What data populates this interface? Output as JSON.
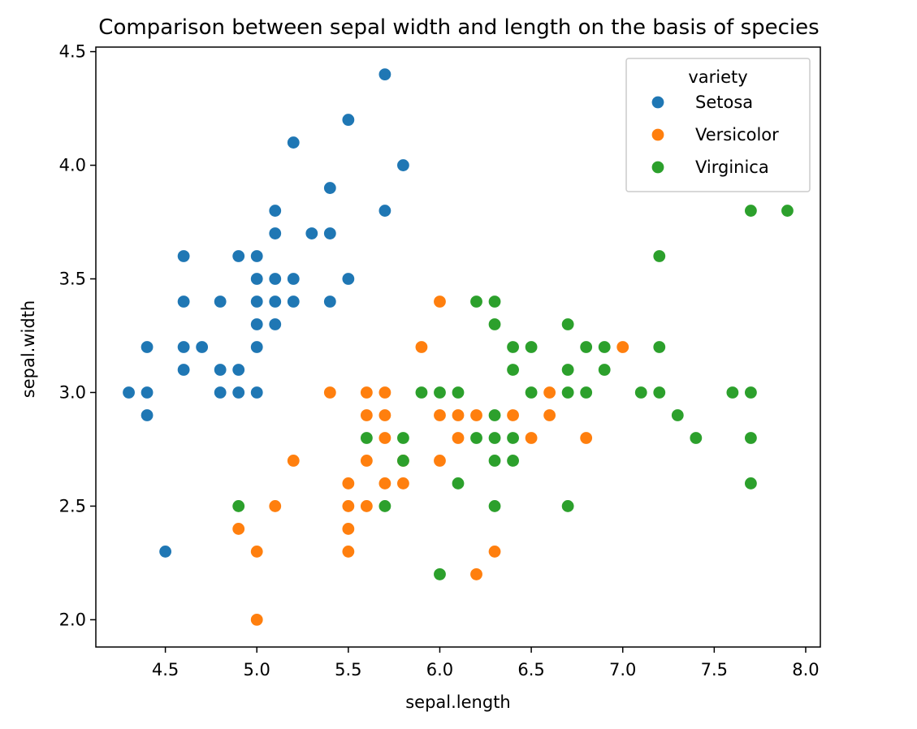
{
  "chart_data": {
    "type": "scatter",
    "title": "Comparison between sepal width and length on the basis of species",
    "xlabel": "sepal.length",
    "ylabel": "sepal.width",
    "xlim": [
      4.12,
      8.08
    ],
    "ylim": [
      1.88,
      4.52
    ],
    "x_ticks": [
      4.5,
      5.0,
      5.5,
      6.0,
      6.5,
      7.0,
      7.5,
      8.0
    ],
    "y_ticks": [
      2.0,
      2.5,
      3.0,
      3.5,
      4.0,
      4.5
    ],
    "grid": false,
    "legend": {
      "title": "variety",
      "position": "top-right"
    },
    "series": [
      {
        "name": "Setosa",
        "color": "#1f77b4",
        "points": [
          [
            5.7,
            4.4
          ],
          [
            5.5,
            4.2
          ],
          [
            5.2,
            4.1
          ],
          [
            5.8,
            4.0
          ],
          [
            5.4,
            3.9
          ],
          [
            5.1,
            3.8
          ],
          [
            5.7,
            3.8
          ],
          [
            5.1,
            3.7
          ],
          [
            5.3,
            3.7
          ],
          [
            5.4,
            3.7
          ],
          [
            4.6,
            3.6
          ],
          [
            4.9,
            3.6
          ],
          [
            5.0,
            3.6
          ],
          [
            5.0,
            3.5
          ],
          [
            5.1,
            3.5
          ],
          [
            5.2,
            3.5
          ],
          [
            5.5,
            3.5
          ],
          [
            4.6,
            3.4
          ],
          [
            4.8,
            3.4
          ],
          [
            5.0,
            3.4
          ],
          [
            5.1,
            3.4
          ],
          [
            5.2,
            3.4
          ],
          [
            5.4,
            3.4
          ],
          [
            5.0,
            3.3
          ],
          [
            5.1,
            3.3
          ],
          [
            4.4,
            3.2
          ],
          [
            4.6,
            3.2
          ],
          [
            4.7,
            3.2
          ],
          [
            5.0,
            3.2
          ],
          [
            4.6,
            3.1
          ],
          [
            4.8,
            3.1
          ],
          [
            4.9,
            3.1
          ],
          [
            4.3,
            3.0
          ],
          [
            4.4,
            3.0
          ],
          [
            4.8,
            3.0
          ],
          [
            4.9,
            3.0
          ],
          [
            5.0,
            3.0
          ],
          [
            4.4,
            2.9
          ],
          [
            4.5,
            2.3
          ]
        ]
      },
      {
        "name": "Versicolor",
        "color": "#ff7f0e",
        "points": [
          [
            6.0,
            3.4
          ],
          [
            5.9,
            3.2
          ],
          [
            7.0,
            3.2
          ],
          [
            5.4,
            3.0
          ],
          [
            5.6,
            3.0
          ],
          [
            5.7,
            3.0
          ],
          [
            6.6,
            3.0
          ],
          [
            5.6,
            2.9
          ],
          [
            5.7,
            2.9
          ],
          [
            6.0,
            2.9
          ],
          [
            6.1,
            2.9
          ],
          [
            6.2,
            2.9
          ],
          [
            6.4,
            2.9
          ],
          [
            6.6,
            2.9
          ],
          [
            5.7,
            2.8
          ],
          [
            6.1,
            2.8
          ],
          [
            6.5,
            2.8
          ],
          [
            6.8,
            2.8
          ],
          [
            5.2,
            2.7
          ],
          [
            5.6,
            2.7
          ],
          [
            5.8,
            2.7
          ],
          [
            6.0,
            2.7
          ],
          [
            5.5,
            2.6
          ],
          [
            5.7,
            2.6
          ],
          [
            5.8,
            2.6
          ],
          [
            5.1,
            2.5
          ],
          [
            5.5,
            2.5
          ],
          [
            5.6,
            2.5
          ],
          [
            4.9,
            2.4
          ],
          [
            5.5,
            2.4
          ],
          [
            5.0,
            2.3
          ],
          [
            5.5,
            2.3
          ],
          [
            6.3,
            2.3
          ],
          [
            6.2,
            2.2
          ],
          [
            5.0,
            2.0
          ]
        ]
      },
      {
        "name": "Virginica",
        "color": "#2ca02c",
        "points": [
          [
            7.7,
            3.8
          ],
          [
            7.9,
            3.8
          ],
          [
            7.2,
            3.6
          ],
          [
            6.2,
            3.4
          ],
          [
            6.3,
            3.4
          ],
          [
            6.3,
            3.3
          ],
          [
            6.7,
            3.3
          ],
          [
            6.4,
            3.2
          ],
          [
            6.5,
            3.2
          ],
          [
            6.8,
            3.2
          ],
          [
            6.9,
            3.2
          ],
          [
            7.2,
            3.2
          ],
          [
            6.4,
            3.1
          ],
          [
            6.7,
            3.1
          ],
          [
            6.9,
            3.1
          ],
          [
            5.9,
            3.0
          ],
          [
            6.0,
            3.0
          ],
          [
            6.1,
            3.0
          ],
          [
            6.5,
            3.0
          ],
          [
            6.7,
            3.0
          ],
          [
            6.8,
            3.0
          ],
          [
            7.1,
            3.0
          ],
          [
            7.2,
            3.0
          ],
          [
            7.6,
            3.0
          ],
          [
            7.7,
            3.0
          ],
          [
            6.3,
            2.9
          ],
          [
            7.3,
            2.9
          ],
          [
            5.6,
            2.8
          ],
          [
            5.8,
            2.8
          ],
          [
            6.2,
            2.8
          ],
          [
            6.3,
            2.8
          ],
          [
            6.4,
            2.8
          ],
          [
            7.4,
            2.8
          ],
          [
            7.7,
            2.8
          ],
          [
            5.8,
            2.7
          ],
          [
            6.3,
            2.7
          ],
          [
            6.4,
            2.7
          ],
          [
            6.1,
            2.6
          ],
          [
            7.7,
            2.6
          ],
          [
            4.9,
            2.5
          ],
          [
            5.7,
            2.5
          ],
          [
            6.3,
            2.5
          ],
          [
            6.7,
            2.5
          ],
          [
            6.0,
            2.2
          ]
        ]
      }
    ]
  }
}
